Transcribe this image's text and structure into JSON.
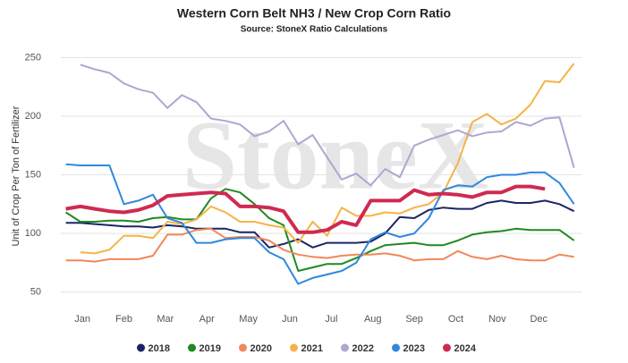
{
  "chart_data": {
    "type": "line",
    "title": "Western Corn Belt NH3 / New Crop Corn Ratio",
    "subtitle": "Source: StoneX Ratio Calculations",
    "y_label": "Unit of Crop Per Ton of Fertilizer",
    "watermark": "StoneX",
    "x": [
      0.6,
      0.95,
      1.3,
      1.65,
      2.0,
      2.35,
      2.7,
      3.05,
      3.4,
      3.75,
      4.1,
      4.45,
      4.8,
      5.15,
      5.5,
      5.85,
      6.2,
      6.55,
      6.9,
      7.25,
      7.6,
      7.95,
      8.3,
      8.65,
      9.0,
      9.35,
      9.7,
      10.05,
      10.4,
      10.75,
      11.1,
      11.45,
      11.8,
      12.15,
      12.5,
      12.85
    ],
    "xlim": [
      0.48,
      13.03
    ],
    "xticks": [
      {
        "value": 1,
        "label": "Jan"
      },
      {
        "value": 2,
        "label": "Feb"
      },
      {
        "value": 3,
        "label": "Mar"
      },
      {
        "value": 4,
        "label": "Apr"
      },
      {
        "value": 5,
        "label": "May"
      },
      {
        "value": 6,
        "label": "Jun"
      },
      {
        "value": 7,
        "label": "Jul"
      },
      {
        "value": 8,
        "label": "Aug"
      },
      {
        "value": 9,
        "label": "Sep"
      },
      {
        "value": 10,
        "label": "Oct"
      },
      {
        "value": 11,
        "label": "Nov"
      },
      {
        "value": 12,
        "label": "Dec"
      }
    ],
    "ylim": [
      36,
      261
    ],
    "yticks": [
      50,
      100,
      150,
      200,
      250
    ],
    "grid": true,
    "legend": "bottom",
    "series": [
      {
        "name": "2018",
        "color": "#1b2466",
        "width": 2,
        "values": [
          109,
          109,
          108,
          107,
          106,
          106,
          105,
          107,
          106,
          104,
          104,
          104,
          101,
          101,
          88,
          91,
          95,
          88,
          92,
          92,
          92,
          93,
          100,
          114,
          113,
          120,
          122,
          121,
          121,
          126,
          128,
          126,
          126,
          128,
          125,
          119
        ]
      },
      {
        "name": "2019",
        "color": "#1f8a1f",
        "width": 2,
        "values": [
          118,
          110,
          110,
          111,
          111,
          110,
          113,
          114,
          112,
          112,
          130,
          138,
          135,
          125,
          113,
          107,
          68,
          71,
          74,
          74,
          79,
          85,
          90,
          91,
          92,
          90,
          90,
          94,
          99,
          101,
          102,
          104,
          103,
          103,
          103,
          94
        ]
      },
      {
        "name": "2020",
        "color": "#f2875a",
        "width": 2,
        "values": [
          77,
          77,
          76,
          78,
          78,
          78,
          81,
          99,
          99,
          103,
          104,
          96,
          97,
          97,
          94,
          86,
          82,
          80,
          79,
          81,
          82,
          82,
          83,
          81,
          77,
          78,
          78,
          85,
          80,
          78,
          81,
          78,
          77,
          77,
          82,
          80
        ]
      },
      {
        "name": "2021",
        "color": "#f5b347",
        "width": 2,
        "values": [
          null,
          84,
          83,
          86,
          98,
          98,
          96,
          110,
          108,
          112,
          123,
          118,
          110,
          110,
          107,
          105,
          92,
          110,
          98,
          122,
          115,
          115,
          118,
          117,
          122,
          125,
          135,
          160,
          195,
          202,
          193,
          198,
          210,
          230,
          229,
          245
        ]
      },
      {
        "name": "2022",
        "color": "#a9a9d1",
        "width": 2,
        "values": [
          null,
          244,
          240,
          237,
          228,
          223,
          220,
          207,
          218,
          212,
          198,
          196,
          193,
          183,
          187,
          196,
          176,
          184,
          165,
          146,
          151,
          141,
          155,
          148,
          175,
          180,
          184,
          188,
          183,
          186,
          187,
          195,
          192,
          198,
          199,
          156
        ]
      },
      {
        "name": "2023",
        "color": "#2f88dc",
        "width": 2,
        "values": [
          159,
          158,
          158,
          158,
          125,
          128,
          133,
          113,
          109,
          92,
          92,
          95,
          96,
          96,
          84,
          78,
          57,
          62,
          65,
          68,
          75,
          95,
          101,
          97,
          100,
          113,
          137,
          141,
          140,
          148,
          150,
          150,
          152,
          152,
          143,
          125
        ]
      },
      {
        "name": "2024",
        "color": "#cf2a50",
        "width": 4,
        "values": [
          121,
          123,
          121,
          119,
          118,
          120,
          124,
          132,
          133,
          134,
          135,
          134,
          123,
          123,
          122,
          119,
          101,
          101,
          103,
          110,
          107,
          128,
          128,
          128,
          137,
          133,
          134,
          133,
          131,
          135,
          135,
          140,
          140,
          138,
          null,
          null
        ]
      }
    ]
  }
}
